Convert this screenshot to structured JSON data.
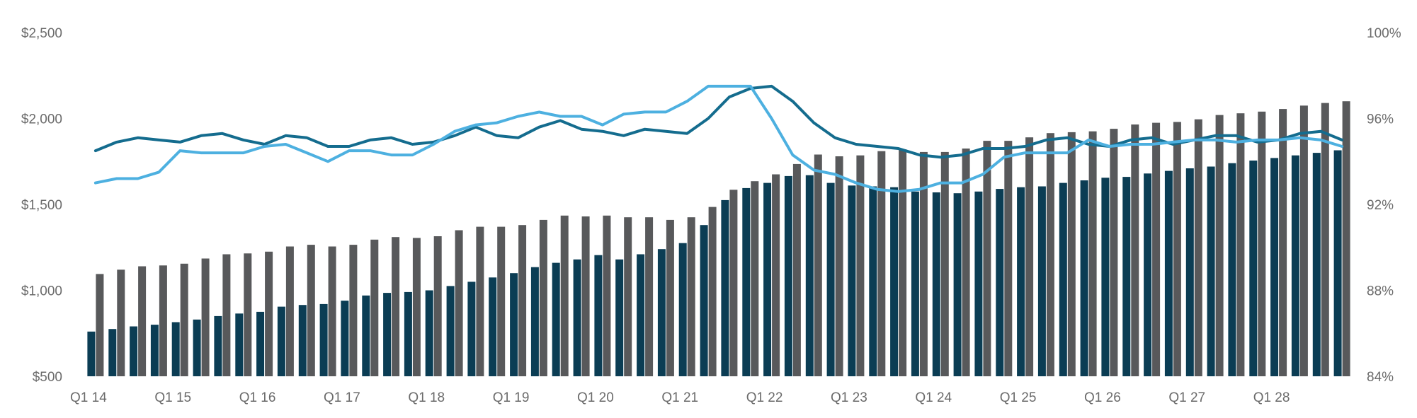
{
  "chart_data": {
    "type": "bar",
    "title": "",
    "xlabel": "",
    "ylabel": "",
    "ylim": [
      500,
      2500
    ],
    "y2lim": [
      84,
      100
    ],
    "grid": false,
    "legend": "none",
    "y_ticks": [
      "$500",
      "$1,000",
      "$1,500",
      "$2,000",
      "$2,500"
    ],
    "y2_ticks": [
      "84%",
      "88%",
      "92%",
      "96%",
      "100%"
    ],
    "x_tick_labels": [
      "Q1 14",
      "Q1 15",
      "Q1 16",
      "Q1 17",
      "Q1 18",
      "Q1 19",
      "Q1 20",
      "Q1 21",
      "Q1 22",
      "Q1 23",
      "Q1 24",
      "Q1 25",
      "Q1 26",
      "Q1 27",
      "Q1 28"
    ],
    "categories": [
      "Q1 14",
      "Q2 14",
      "Q3 14",
      "Q4 14",
      "Q1 15",
      "Q2 15",
      "Q3 15",
      "Q4 15",
      "Q1 16",
      "Q2 16",
      "Q3 16",
      "Q4 16",
      "Q1 17",
      "Q2 17",
      "Q3 17",
      "Q4 17",
      "Q1 18",
      "Q2 18",
      "Q3 18",
      "Q4 18",
      "Q1 19",
      "Q2 19",
      "Q3 19",
      "Q4 19",
      "Q1 20",
      "Q2 20",
      "Q3 20",
      "Q4 20",
      "Q1 21",
      "Q2 21",
      "Q3 21",
      "Q4 21",
      "Q1 22",
      "Q2 22",
      "Q3 22",
      "Q4 22",
      "Q1 23",
      "Q2 23",
      "Q3 23",
      "Q4 23",
      "Q1 24",
      "Q2 24",
      "Q3 24",
      "Q4 24",
      "Q1 25",
      "Q2 25",
      "Q3 25",
      "Q4 25",
      "Q1 26",
      "Q2 26",
      "Q3 26",
      "Q4 26",
      "Q1 27",
      "Q2 27",
      "Q3 27",
      "Q4 27",
      "Q1 28",
      "Q2 28",
      "Q3 28",
      "Q4 28"
    ],
    "series": [
      {
        "kind": "bar",
        "axis": "left",
        "color": "#0b3d54",
        "values": [
          760,
          775,
          790,
          800,
          815,
          830,
          850,
          865,
          875,
          905,
          915,
          920,
          940,
          970,
          985,
          990,
          1000,
          1025,
          1050,
          1075,
          1100,
          1135,
          1160,
          1180,
          1205,
          1180,
          1210,
          1240,
          1275,
          1380,
          1525,
          1595,
          1625,
          1665,
          1670,
          1625,
          1610,
          1605,
          1600,
          1575,
          1570,
          1565,
          1575,
          1590,
          1600,
          1605,
          1625,
          1640,
          1655,
          1660,
          1680,
          1695,
          1710,
          1720,
          1740,
          1755,
          1770,
          1785,
          1800,
          1815
        ]
      },
      {
        "kind": "bar",
        "axis": "left",
        "color": "#58595b",
        "values": [
          1095,
          1120,
          1140,
          1145,
          1155,
          1185,
          1210,
          1215,
          1225,
          1255,
          1265,
          1255,
          1265,
          1295,
          1310,
          1305,
          1315,
          1350,
          1370,
          1370,
          1380,
          1410,
          1435,
          1430,
          1435,
          1425,
          1425,
          1410,
          1425,
          1485,
          1585,
          1635,
          1675,
          1735,
          1790,
          1780,
          1785,
          1810,
          1820,
          1805,
          1805,
          1825,
          1870,
          1870,
          1890,
          1915,
          1920,
          1925,
          1940,
          1965,
          1975,
          1980,
          1995,
          2020,
          2030,
          2040,
          2055,
          2075,
          2090,
          2100
        ]
      },
      {
        "kind": "line",
        "axis": "right",
        "color": "#146c8e",
        "values": [
          94.5,
          94.9,
          95.1,
          95.0,
          94.9,
          95.2,
          95.3,
          95.0,
          94.8,
          95.2,
          95.1,
          94.7,
          94.7,
          95.0,
          95.1,
          94.8,
          94.9,
          95.2,
          95.6,
          95.2,
          95.1,
          95.6,
          95.9,
          95.5,
          95.4,
          95.2,
          95.5,
          95.4,
          95.3,
          96.0,
          97.0,
          97.4,
          97.5,
          96.8,
          95.8,
          95.1,
          94.8,
          94.7,
          94.6,
          94.3,
          94.2,
          94.3,
          94.6,
          94.6,
          94.7,
          95.0,
          95.1,
          94.8,
          94.7,
          95.0,
          95.1,
          94.8,
          95.0,
          95.2,
          95.2,
          94.9,
          95.0,
          95.3,
          95.4,
          95.0
        ]
      },
      {
        "kind": "line",
        "axis": "right",
        "color": "#4db0e0",
        "values": [
          93.0,
          93.2,
          93.2,
          93.5,
          94.5,
          94.4,
          94.4,
          94.4,
          94.7,
          94.8,
          94.4,
          94.0,
          94.5,
          94.5,
          94.3,
          94.3,
          94.8,
          95.4,
          95.7,
          95.8,
          96.1,
          96.3,
          96.1,
          96.1,
          95.7,
          96.2,
          96.3,
          96.3,
          96.8,
          97.5,
          97.5,
          97.5,
          96.0,
          94.3,
          93.6,
          93.4,
          93.0,
          92.7,
          92.6,
          92.7,
          93.0,
          93.0,
          93.4,
          94.2,
          94.4,
          94.4,
          94.4,
          95.0,
          94.7,
          94.8,
          94.8,
          94.9,
          95.0,
          95.0,
          94.9,
          95.0,
          95.0,
          95.1,
          95.0,
          94.7
        ]
      }
    ]
  }
}
